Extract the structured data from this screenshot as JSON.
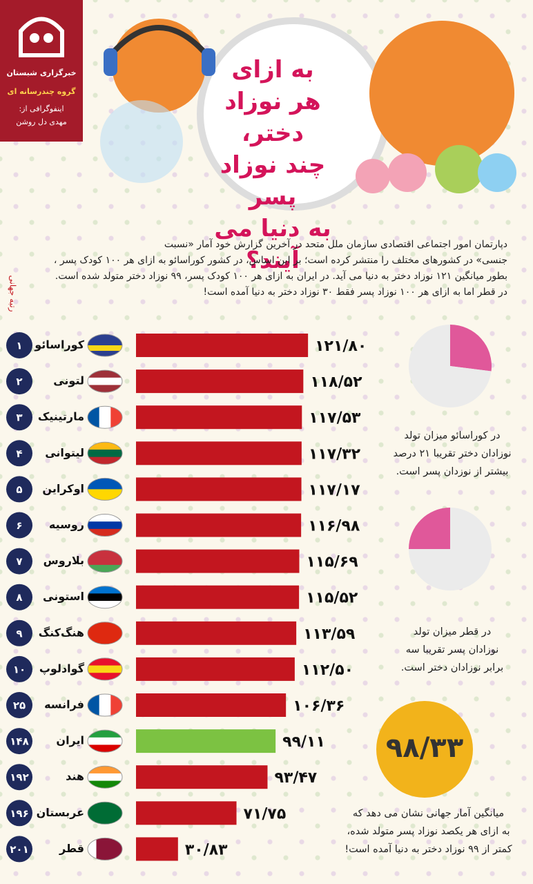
{
  "header": {
    "agency": "خبرگزاری شبستان",
    "group": "گروه چندرسانه ای",
    "credit_label": "اینفوگرافی از:",
    "author": "مهدی دل روشن",
    "title_lines": [
      "به ازای",
      "هر نوزاد دختر،",
      "چند نوزاد پسر",
      "به دنیا می آیند؟"
    ]
  },
  "intro_lines": [
    "دپارتمان امور اجتماعی اقتصادی سازمان ملل متحد در آخرین گزارش خود آمار «نسبت",
    "جنسی» در کشورهای مختلف را منتشر کرده است؛ بر این اساس، در کشور کوراسائو به ازای هر ۱۰۰ کودک پسر ،",
    "بطور میانگین ۱۲۱ نوزاد دختر به دنیا می آید. در ایران به ازای هر ۱۰۰ کودک پسر، ۹۹ نوزاد دختر متولد شده است.",
    "در قطر اما به ازای هر ۱۰۰ نوزاد پسر فقط ۳۰ نوزاد دختر به دنیا آمده است!"
  ],
  "notes": [
    [
      "در کوراسائو میزان تولد",
      "نوزادان دختر تقریبا ۲۱ درصد",
      "بیشتر از نوزدان پسر است."
    ],
    [
      "در قطر میزان تولد",
      "نوزادان پسر تقریبا سه",
      "برابر نوزادان دختر  است."
    ],
    [
      "میانگین آمار جهانی نشان می دهد که",
      "به ازای هر یکصد نوزاد پسر متولد شده،",
      "کمتر از ۹۹ نوزاد دختر به دنیا آمده است!"
    ]
  ],
  "average_label": "۹۸/۳۳",
  "chart_data": [
    {
      "type": "hbar",
      "axis_label": "رتبه جهانی",
      "categories": [
        "کوراسائو",
        "لتونی",
        "مارتینیک",
        "لیتوانی",
        "اوکراین",
        "روسیه",
        "بلاروس",
        "استونی",
        "هنگ‌کنگ",
        "گوادلوپ",
        "فرانسه",
        "ایران",
        "هند",
        "عربستان",
        "قطر"
      ],
      "ranks": [
        "۱",
        "۲",
        "۳",
        "۴",
        "۵",
        "۶",
        "۷",
        "۸",
        "۹",
        "۱۰",
        "۲۵",
        "۱۴۸",
        "۱۹۲",
        "۱۹۶",
        "۲۰۱"
      ],
      "values": [
        121.8,
        118.52,
        117.53,
        117.32,
        117.17,
        116.98,
        115.69,
        115.52,
        113.59,
        112.5,
        106.36,
        99.11,
        93.47,
        71.75,
        30.83
      ],
      "value_labels": [
        "۱۲۱/۸۰",
        "۱۱۸/۵۲",
        "۱۱۷/۵۳",
        "۱۱۷/۳۲",
        "۱۱۷/۱۷",
        "۱۱۶/۹۸",
        "۱۱۵/۶۹",
        "۱۱۵/۵۲",
        "۱۱۳/۵۹",
        "۱۱۲/۵۰",
        "۱۰۶/۳۶",
        "۹۹/۱۱",
        "۹۳/۴۷",
        "۷۱/۷۵",
        "۳۰/۸۳"
      ],
      "colors": [
        "#c3161f",
        "#c3161f",
        "#c3161f",
        "#c3161f",
        "#c3161f",
        "#c3161f",
        "#c3161f",
        "#c3161f",
        "#c3161f",
        "#c3161f",
        "#c3161f",
        "#7cc242",
        "#c3161f",
        "#c3161f",
        "#c3161f"
      ]
    },
    {
      "type": "pie",
      "values": [
        27,
        73
      ],
      "colors": [
        "#e0589a",
        "#ebebeb"
      ]
    },
    {
      "type": "pie",
      "values": [
        25,
        75
      ],
      "colors": [
        "#e0589a",
        "#ebebeb"
      ]
    }
  ]
}
